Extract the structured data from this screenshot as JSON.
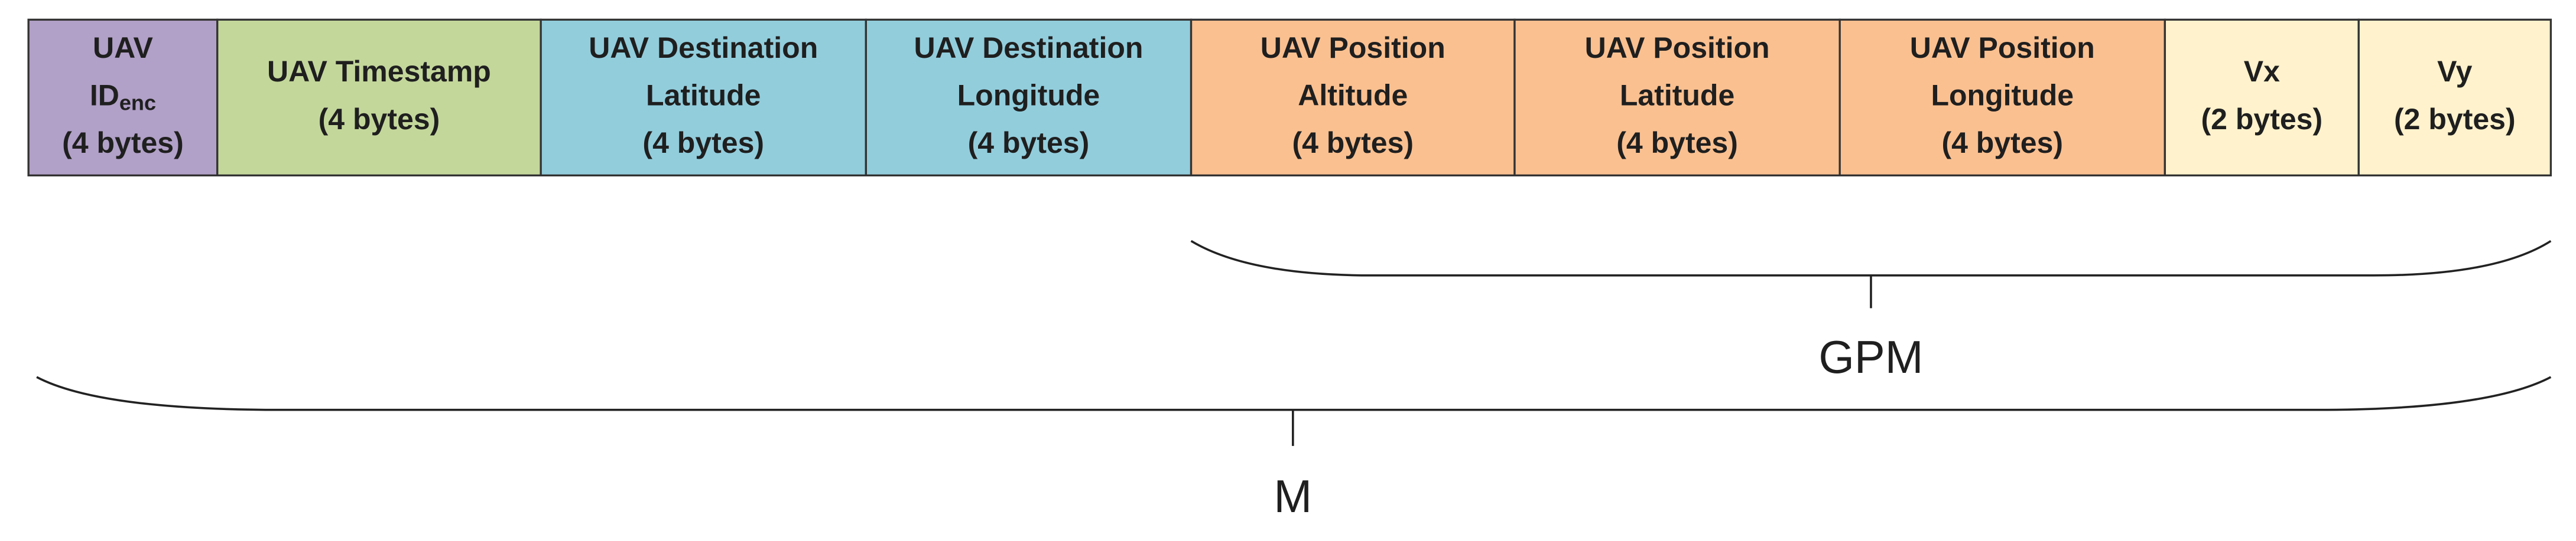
{
  "fields": [
    {
      "color": "#b1a0c7",
      "lines": [
        "UAV",
        {
          "text": "ID",
          "sub": "enc"
        },
        "(4 bytes)"
      ]
    },
    {
      "color": "#c4d79b",
      "lines": [
        "UAV Timestamp",
        "(4 bytes)"
      ]
    },
    {
      "color": "#92cddc",
      "lines": [
        "UAV Destination",
        "Latitude",
        "(4 bytes)"
      ]
    },
    {
      "color": "#92cddc",
      "lines": [
        "UAV Destination",
        "Longitude",
        "(4 bytes)"
      ]
    },
    {
      "color": "#fac090",
      "lines": [
        "UAV Position",
        "Altitude",
        "(4 bytes)"
      ]
    },
    {
      "color": "#fac090",
      "lines": [
        "UAV Position",
        "Latitude",
        "(4 bytes)"
      ]
    },
    {
      "color": "#fac090",
      "lines": [
        "UAV Position",
        "Longitude",
        "(4 bytes)"
      ]
    },
    {
      "color": "#fff2cc",
      "lines": [
        "Vx",
        "(2 bytes)"
      ]
    },
    {
      "color": "#fff2cc",
      "lines": [
        "Vy",
        "(2 bytes)"
      ]
    }
  ],
  "braces": [
    {
      "label": "GPM"
    },
    {
      "label": "M"
    }
  ]
}
